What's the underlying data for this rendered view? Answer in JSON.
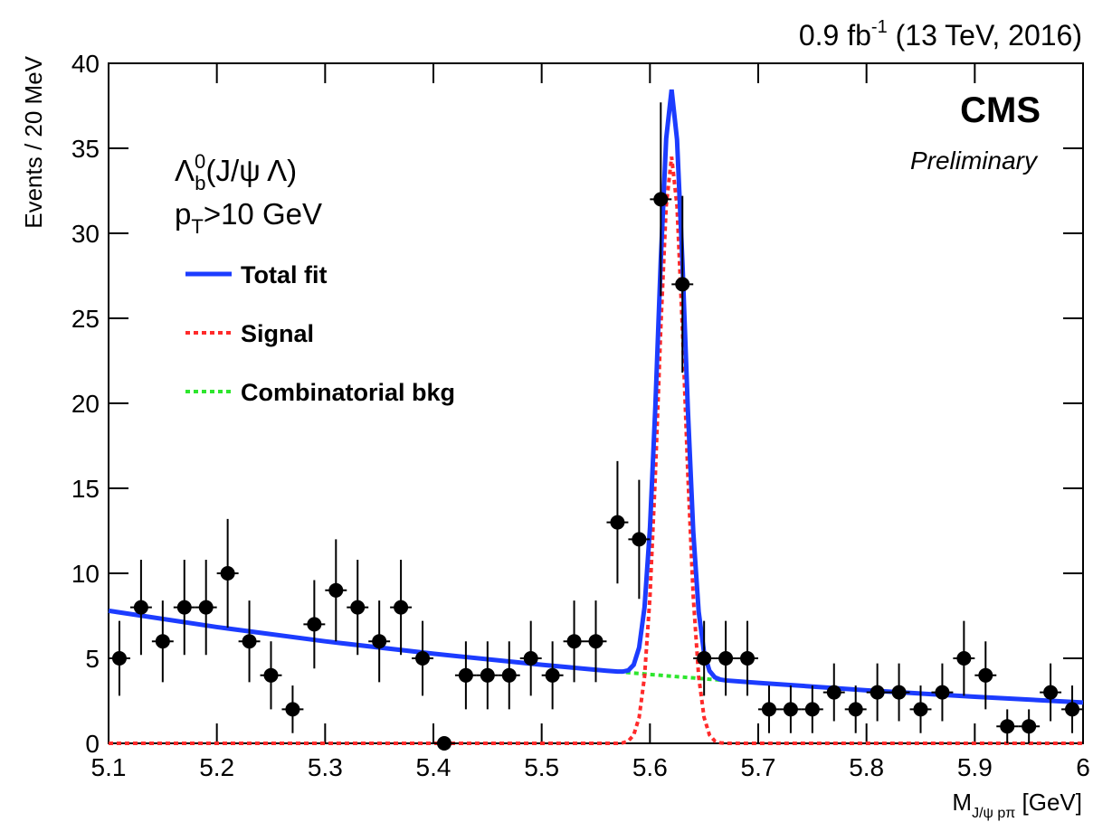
{
  "chart_data": {
    "type": "errorbar",
    "title": [
      "0.9 fb",
      "-1",
      " (13 TeV, 2016)"
    ],
    "brand": "CMS",
    "status": "Preliminary",
    "annotations": [
      [
        "Λ",
        "0",
        "b",
        "(J/ψ  Λ)"
      ],
      [
        "p",
        "T",
        ">10 GeV"
      ]
    ],
    "x_label": [
      "M",
      "J/ψ pπ",
      " [GeV]"
    ],
    "y_label": "Events / 20 MeV",
    "xlim": [
      5.1,
      6
    ],
    "ylim": [
      0,
      40
    ],
    "xticks": [
      5.1,
      5.2,
      5.3,
      5.4,
      5.5,
      5.6,
      5.7,
      5.8,
      5.9,
      6
    ],
    "yticks": [
      0,
      5,
      10,
      15,
      20,
      25,
      30,
      35,
      40
    ],
    "marker_color": "#000000",
    "x": [
      5.11,
      5.13,
      5.15,
      5.17,
      5.19,
      5.21,
      5.23,
      5.25,
      5.27,
      5.29,
      5.31,
      5.33,
      5.35,
      5.37,
      5.39,
      5.41,
      5.43,
      5.45,
      5.47,
      5.49,
      5.51,
      5.53,
      5.55,
      5.57,
      5.59,
      5.61,
      5.63,
      5.65,
      5.67,
      5.69,
      5.71,
      5.73,
      5.75,
      5.77,
      5.79,
      5.81,
      5.83,
      5.85,
      5.87,
      5.89,
      5.91,
      5.93,
      5.95,
      5.97,
      5.99
    ],
    "values": [
      5,
      8,
      6,
      8,
      8,
      10,
      6,
      4,
      2,
      7,
      9,
      8,
      6,
      8,
      5,
      0,
      4,
      4,
      4,
      5,
      4,
      6,
      6,
      13,
      12,
      32,
      27,
      5,
      5,
      5,
      2,
      2,
      2,
      3,
      2,
      3,
      3,
      2,
      3,
      5,
      4,
      1,
      1,
      3,
      2
    ],
    "errors": [
      2.2,
      2.8,
      2.4,
      2.8,
      2.8,
      3.2,
      2.4,
      2.0,
      1.4,
      2.6,
      3.0,
      2.8,
      2.4,
      2.8,
      2.2,
      0,
      2.0,
      2.0,
      2.0,
      2.2,
      2.0,
      2.4,
      2.4,
      3.6,
      3.5,
      5.7,
      5.2,
      2.2,
      2.2,
      2.2,
      1.4,
      1.4,
      1.4,
      1.7,
      1.4,
      1.7,
      1.7,
      1.4,
      1.7,
      2.2,
      2.0,
      1.0,
      1.0,
      1.7,
      1.4
    ],
    "series": [
      {
        "name": "Combinatorial bkg",
        "type": "line",
        "color": "#2ee62e",
        "style": "dotted",
        "x": [
          5.1,
          5.2,
          5.3,
          5.4,
          5.5,
          5.56,
          5.57,
          5.575,
          5.58,
          5.585,
          5.59,
          5.595,
          5.6,
          5.605,
          5.61,
          5.615,
          5.62,
          5.625,
          5.63,
          5.635,
          5.64,
          5.645,
          5.65,
          5.655,
          5.66,
          5.665,
          5.67,
          5.7,
          5.8,
          5.9,
          6.0
        ],
        "values": [
          7.8,
          6.84,
          6.0,
          5.27,
          4.62,
          4.27,
          4.22,
          4.19,
          4.16,
          4.13,
          4.11,
          4.08,
          4.05,
          4.03,
          4.0,
          3.97,
          3.95,
          3.92,
          3.9,
          3.87,
          3.85,
          3.82,
          3.8,
          3.77,
          3.75,
          3.72,
          3.7,
          3.56,
          3.12,
          2.74,
          2.4
        ]
      },
      {
        "name": "Signal",
        "type": "line",
        "color": "#ff2a2a",
        "style": "dotted",
        "x": [
          5.1,
          5.2,
          5.3,
          5.4,
          5.5,
          5.56,
          5.57,
          5.575,
          5.58,
          5.585,
          5.59,
          5.595,
          5.6,
          5.605,
          5.61,
          5.615,
          5.62,
          5.625,
          5.63,
          5.635,
          5.64,
          5.645,
          5.65,
          5.655,
          5.66,
          5.665,
          5.67,
          5.7,
          5.8,
          5.9,
          6.0
        ],
        "values": [
          0,
          0,
          0,
          0,
          0,
          0,
          0,
          0.03,
          0.13,
          0.49,
          1.52,
          3.93,
          8.6,
          15.8,
          24.4,
          31.6,
          34.5,
          31.6,
          24.4,
          15.8,
          8.6,
          3.93,
          1.52,
          0.49,
          0.13,
          0.03,
          0,
          0,
          0,
          0,
          0
        ]
      },
      {
        "name": "Total fit",
        "type": "line",
        "color": "#1c3cff",
        "style": "solid",
        "x": [
          5.1,
          5.2,
          5.3,
          5.4,
          5.5,
          5.56,
          5.57,
          5.575,
          5.58,
          5.585,
          5.59,
          5.595,
          5.6,
          5.605,
          5.61,
          5.615,
          5.62,
          5.625,
          5.63,
          5.635,
          5.64,
          5.645,
          5.65,
          5.655,
          5.66,
          5.665,
          5.67,
          5.7,
          5.8,
          5.9,
          6.0
        ],
        "values": [
          7.8,
          6.84,
          6.0,
          5.27,
          4.62,
          4.27,
          4.22,
          4.22,
          4.29,
          4.62,
          5.63,
          8.01,
          12.65,
          19.83,
          28.4,
          35.57,
          38.45,
          35.52,
          28.3,
          19.67,
          12.45,
          7.75,
          5.32,
          4.26,
          3.88,
          3.75,
          3.7,
          3.56,
          3.12,
          2.74,
          2.4
        ]
      }
    ],
    "legend_order": [
      2,
      1,
      0
    ]
  }
}
